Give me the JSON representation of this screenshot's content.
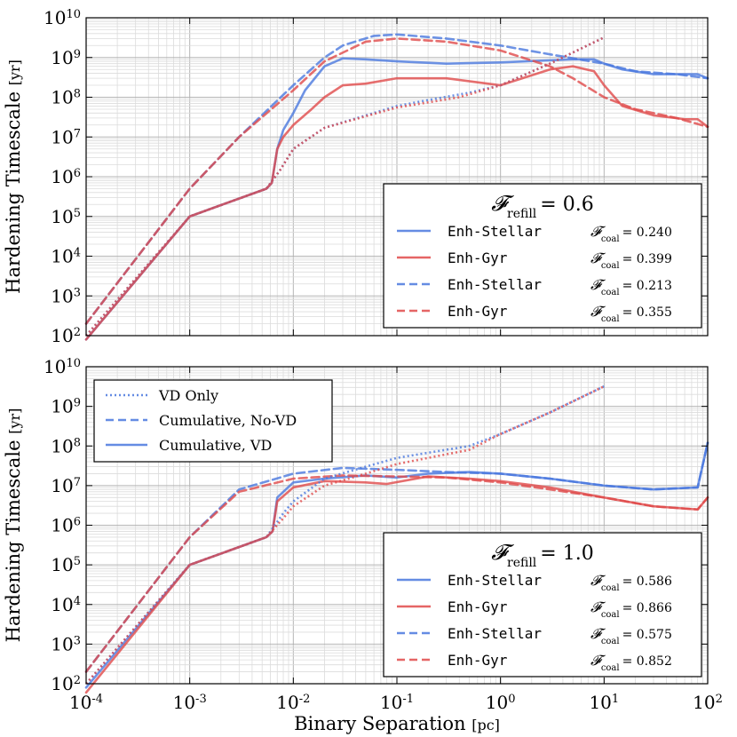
{
  "figure": {
    "xlabel_main": "Binary Separation",
    "xlabel_unit": "[pc]",
    "ylabel_main": "Hardening Timescale",
    "ylabel_unit": "[yr]"
  },
  "colors": {
    "blue": "#4a78de",
    "red": "#e04a4a",
    "purple": "#9a3a78"
  },
  "style_legend": {
    "items": [
      {
        "label": "VD Only",
        "dash": "dotted"
      },
      {
        "label": "Cumulative, No-VD",
        "dash": "dashed"
      },
      {
        "label": "Cumulative, VD",
        "dash": "solid"
      }
    ]
  },
  "chart_data": [
    {
      "type": "line",
      "panel": "top",
      "title": "F_refill = 0.6",
      "refill_label": "𝓕",
      "refill_sub": "refill",
      "refill_value": "= 0.6",
      "xlabel": "Binary Separation [pc]",
      "ylabel": "Hardening Timescale [yr]",
      "xscale": "log",
      "yscale": "log",
      "xlim": [
        0.0001,
        100
      ],
      "ylim": [
        100,
        10000000000
      ],
      "xticks": [
        "10^-4",
        "10^-3",
        "10^-2",
        "10^-1",
        "10^0",
        "10^1",
        "10^2"
      ],
      "yticks": [
        "10^2",
        "10^3",
        "10^4",
        "10^5",
        "10^6",
        "10^7",
        "10^8",
        "10^9",
        "10^10"
      ],
      "legend": [
        {
          "name": "Enh-Stellar",
          "color": "blue",
          "dash": "solid",
          "fcoal": "0.240"
        },
        {
          "name": "Enh-Gyr",
          "color": "red",
          "dash": "solid",
          "fcoal": "0.399"
        },
        {
          "name": "Enh-Stellar",
          "color": "blue",
          "dash": "dashed",
          "fcoal": "0.213"
        },
        {
          "name": "Enh-Gyr",
          "color": "red",
          "dash": "dashed",
          "fcoal": "0.355"
        }
      ],
      "series": [
        {
          "name": "Enh-Stellar Cumulative VD",
          "color": "blue",
          "dash": "solid",
          "points": [
            [
              0.0001,
              80
            ],
            [
              0.001,
              100000
            ],
            [
              0.0055,
              500000
            ],
            [
              0.0062,
              700000
            ],
            [
              0.007,
              5000000
            ],
            [
              0.008,
              15000000
            ],
            [
              0.01,
              40000000
            ],
            [
              0.013,
              150000000
            ],
            [
              0.02,
              600000000
            ],
            [
              0.03,
              950000000
            ],
            [
              0.05,
              900000000
            ],
            [
              0.1,
              800000000
            ],
            [
              0.3,
              700000000
            ],
            [
              1,
              750000000
            ],
            [
              5,
              900000000
            ],
            [
              8,
              900000000
            ],
            [
              10,
              700000000
            ],
            [
              15,
              500000000
            ],
            [
              30,
              380000000
            ],
            [
              60,
              380000000
            ],
            [
              80,
              380000000
            ],
            [
              100,
              300000000
            ]
          ]
        },
        {
          "name": "Enh-Gyr Cumulative VD",
          "color": "red",
          "dash": "solid",
          "points": [
            [
              0.0001,
              80
            ],
            [
              0.001,
              100000
            ],
            [
              0.0055,
              500000
            ],
            [
              0.0062,
              700000
            ],
            [
              0.007,
              5000000
            ],
            [
              0.008,
              10000000
            ],
            [
              0.01,
              20000000
            ],
            [
              0.015,
              50000000
            ],
            [
              0.02,
              100000000
            ],
            [
              0.03,
              200000000
            ],
            [
              0.05,
              220000000
            ],
            [
              0.1,
              300000000
            ],
            [
              0.3,
              300000000
            ],
            [
              1,
              200000000
            ],
            [
              3,
              500000000
            ],
            [
              5,
              600000000
            ],
            [
              8,
              450000000
            ],
            [
              10,
              200000000
            ],
            [
              15,
              60000000
            ],
            [
              30,
              35000000
            ],
            [
              60,
              28000000
            ],
            [
              80,
              28000000
            ],
            [
              100,
              18000000
            ]
          ]
        },
        {
          "name": "Enh-Stellar Cumulative No-VD",
          "color": "blue",
          "dash": "dashed",
          "points": [
            [
              0.0001,
              200
            ],
            [
              0.001,
              500000
            ],
            [
              0.003,
              10000000
            ],
            [
              0.01,
              200000000
            ],
            [
              0.02,
              1000000000
            ],
            [
              0.03,
              2000000000
            ],
            [
              0.06,
              3500000000
            ],
            [
              0.1,
              3800000000
            ],
            [
              0.3,
              3000000000
            ],
            [
              1,
              2000000000
            ],
            [
              3,
              1200000000
            ],
            [
              10,
              700000000
            ],
            [
              20,
              450000000
            ],
            [
              50,
              380000000
            ],
            [
              100,
              300000000
            ]
          ]
        },
        {
          "name": "Enh-Gyr Cumulative No-VD",
          "color": "red",
          "dash": "dashed",
          "points": [
            [
              0.0001,
              200
            ],
            [
              0.001,
              500000
            ],
            [
              0.003,
              10000000
            ],
            [
              0.01,
              150000000
            ],
            [
              0.02,
              800000000
            ],
            [
              0.05,
              2500000000
            ],
            [
              0.1,
              3000000000
            ],
            [
              0.3,
              2500000000
            ],
            [
              1,
              1500000000
            ],
            [
              3,
              600000000
            ],
            [
              5,
              300000000
            ],
            [
              10,
              100000000
            ],
            [
              20,
              50000000
            ],
            [
              50,
              30000000
            ],
            [
              100,
              18000000
            ]
          ]
        },
        {
          "name": "Enh-Stellar VD Only",
          "color": "blue",
          "dash": "dotted",
          "points": [
            [
              0.0001,
              100
            ],
            [
              0.001,
              100000
            ],
            [
              0.0055,
              500000
            ],
            [
              0.0075,
              1500000
            ],
            [
              0.01,
              5000000
            ],
            [
              0.02,
              17000000
            ],
            [
              0.1,
              60000000
            ],
            [
              0.2,
              85000000
            ],
            [
              0.5,
              130000000
            ],
            [
              1,
              200000000
            ],
            [
              3,
              700000000
            ],
            [
              10,
              3200000000
            ]
          ]
        },
        {
          "name": "Enh-Gyr VD Only",
          "color": "red",
          "dash": "dotted",
          "points": [
            [
              0.0001,
              100
            ],
            [
              0.001,
              100000
            ],
            [
              0.0055,
              500000
            ],
            [
              0.0075,
              1500000
            ],
            [
              0.01,
              5000000
            ],
            [
              0.02,
              17000000
            ],
            [
              0.1,
              55000000
            ],
            [
              0.4,
              100000000
            ],
            [
              1,
              200000000
            ],
            [
              3,
              700000000
            ],
            [
              10,
              3200000000
            ]
          ]
        }
      ]
    },
    {
      "type": "line",
      "panel": "bottom",
      "title": "F_refill = 1.0",
      "refill_label": "𝓕",
      "refill_sub": "refill",
      "refill_value": "= 1.0",
      "xlabel": "Binary Separation [pc]",
      "ylabel": "Hardening Timescale [yr]",
      "xscale": "log",
      "yscale": "log",
      "xlim": [
        0.0001,
        100
      ],
      "ylim": [
        100,
        10000000000
      ],
      "xticks": [
        "10^-4",
        "10^-3",
        "10^-2",
        "10^-1",
        "10^0",
        "10^1",
        "10^2"
      ],
      "yticks": [
        "10^2",
        "10^3",
        "10^4",
        "10^5",
        "10^6",
        "10^7",
        "10^8",
        "10^9",
        "10^10"
      ],
      "legend": [
        {
          "name": "Enh-Stellar",
          "color": "blue",
          "dash": "solid",
          "fcoal": "0.586"
        },
        {
          "name": "Enh-Gyr",
          "color": "red",
          "dash": "solid",
          "fcoal": "0.866"
        },
        {
          "name": "Enh-Stellar",
          "color": "blue",
          "dash": "dashed",
          "fcoal": "0.575"
        },
        {
          "name": "Enh-Gyr",
          "color": "red",
          "dash": "dashed",
          "fcoal": "0.852"
        }
      ],
      "series": [
        {
          "name": "Enh-Stellar Cumulative VD",
          "color": "blue",
          "dash": "solid",
          "points": [
            [
              0.0001,
              80
            ],
            [
              0.001,
              100000
            ],
            [
              0.0055,
              500000
            ],
            [
              0.0063,
              700000
            ],
            [
              0.007,
              5000000
            ],
            [
              0.01,
              12000000
            ],
            [
              0.02,
              15000000
            ],
            [
              0.05,
              18000000
            ],
            [
              0.1,
              16000000
            ],
            [
              0.2,
              20000000
            ],
            [
              0.5,
              22000000
            ],
            [
              1,
              20000000
            ],
            [
              3,
              15000000
            ],
            [
              10,
              10000000
            ],
            [
              30,
              8000000
            ],
            [
              80,
              9000000
            ],
            [
              100,
              120000000
            ]
          ]
        },
        {
          "name": "Enh-Gyr Cumulative VD",
          "color": "red",
          "dash": "solid",
          "points": [
            [
              0.0001,
              60
            ],
            [
              0.001,
              100000
            ],
            [
              0.0055,
              500000
            ],
            [
              0.0063,
              700000
            ],
            [
              0.007,
              4000000
            ],
            [
              0.01,
              9000000
            ],
            [
              0.02,
              13000000
            ],
            [
              0.05,
              12000000
            ],
            [
              0.08,
              11000000
            ],
            [
              0.2,
              17000000
            ],
            [
              0.5,
              15000000
            ],
            [
              1,
              13000000
            ],
            [
              3,
              9000000
            ],
            [
              10,
              5000000
            ],
            [
              30,
              3000000
            ],
            [
              80,
              2500000
            ],
            [
              100,
              5000000
            ]
          ]
        },
        {
          "name": "Enh-Stellar Cumulative No-VD",
          "color": "blue",
          "dash": "dashed",
          "points": [
            [
              0.0001,
              200
            ],
            [
              0.001,
              500000
            ],
            [
              0.003,
              8000000
            ],
            [
              0.01,
              20000000
            ],
            [
              0.03,
              28000000
            ],
            [
              0.1,
              25000000
            ],
            [
              0.3,
              22000000
            ],
            [
              1,
              20000000
            ],
            [
              3,
              15000000
            ],
            [
              10,
              10000000
            ],
            [
              30,
              8000000
            ],
            [
              80,
              9000000
            ],
            [
              100,
              120000000
            ]
          ]
        },
        {
          "name": "Enh-Gyr Cumulative No-VD",
          "color": "red",
          "dash": "dashed",
          "points": [
            [
              0.0001,
              200
            ],
            [
              0.001,
              500000
            ],
            [
              0.003,
              7000000
            ],
            [
              0.01,
              15000000
            ],
            [
              0.03,
              18000000
            ],
            [
              0.1,
              17000000
            ],
            [
              0.3,
              16000000
            ],
            [
              1,
              12000000
            ],
            [
              3,
              8000000
            ],
            [
              10,
              5000000
            ],
            [
              30,
              3000000
            ],
            [
              80,
              2500000
            ],
            [
              100,
              5000000
            ]
          ]
        },
        {
          "name": "Enh-Stellar VD Only",
          "color": "blue",
          "dash": "dotted",
          "points": [
            [
              0.0001,
              100
            ],
            [
              0.001,
              100000
            ],
            [
              0.0055,
              500000
            ],
            [
              0.008,
              2000000
            ],
            [
              0.01,
              4000000
            ],
            [
              0.02,
              15000000
            ],
            [
              0.05,
              30000000
            ],
            [
              0.1,
              50000000
            ],
            [
              0.5,
              100000000
            ],
            [
              1,
              200000000
            ],
            [
              3,
              700000000
            ],
            [
              10,
              3200000000
            ]
          ]
        },
        {
          "name": "Enh-Gyr VD Only",
          "color": "red",
          "dash": "dotted",
          "points": [
            [
              0.0001,
              100
            ],
            [
              0.001,
              100000
            ],
            [
              0.0055,
              500000
            ],
            [
              0.008,
              1500000
            ],
            [
              0.01,
              3000000
            ],
            [
              0.02,
              10000000
            ],
            [
              0.05,
              20000000
            ],
            [
              0.1,
              35000000
            ],
            [
              0.5,
              80000000
            ],
            [
              1,
              200000000
            ],
            [
              3,
              700000000
            ],
            [
              10,
              3200000000
            ]
          ]
        }
      ]
    }
  ]
}
